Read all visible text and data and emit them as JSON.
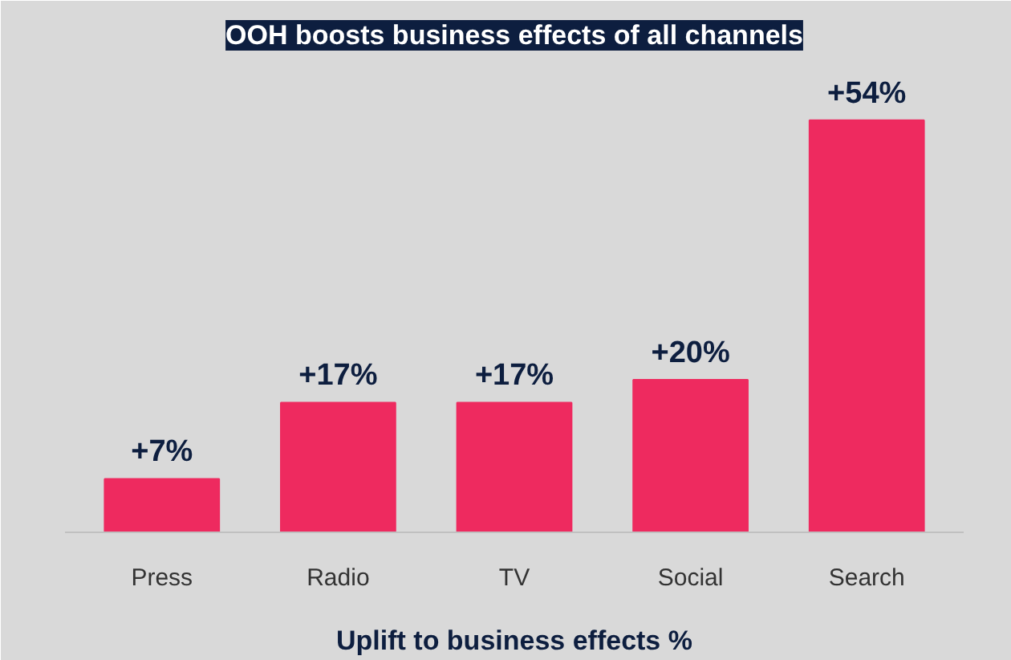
{
  "chart_data": {
    "type": "bar",
    "title": "OOH boosts business effects of all channels",
    "xlabel": "Uplift to business effects %",
    "categories": [
      "Press",
      "Radio",
      "TV",
      "Social",
      "Search"
    ],
    "values": [
      7,
      17,
      17,
      20,
      54
    ],
    "color": "#ee2a5f",
    "value_labels": [
      "+7%",
      "+17%",
      "+17%",
      "+20%",
      "+54%"
    ],
    "grid": false
  }
}
